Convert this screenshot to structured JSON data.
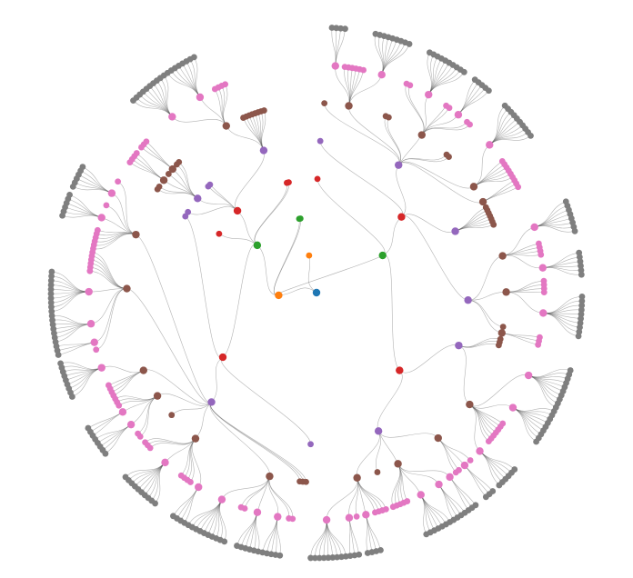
{
  "diagram": {
    "type": "radial-tree",
    "level_colors": [
      "#1f77b4",
      "#ff7f0e",
      "#2ca02c",
      "#d62728",
      "#9467bd",
      "#8c564b",
      "#e377c2",
      "#7f7f7f"
    ]
  }
}
